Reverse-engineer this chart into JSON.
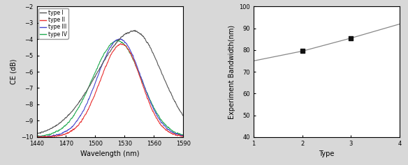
{
  "left_chart": {
    "xlabel": "Wavelength (nm)",
    "ylabel": "CE (dB)",
    "xlim": [
      1440,
      1590
    ],
    "ylim": [
      -10,
      -2
    ],
    "xticks": [
      1440,
      1470,
      1500,
      1530,
      1560,
      1590
    ],
    "yticks": [
      -10,
      -9,
      -8,
      -7,
      -6,
      -5,
      -4,
      -3,
      -2
    ],
    "legend_labels": [
      "type I",
      "type II",
      "type III",
      "type IV"
    ],
    "legend_colors": [
      "#555555",
      "#e83030",
      "#4545cc",
      "#20aa50"
    ],
    "curves": {
      "type_I": {
        "color": "#555555",
        "peak_wl": 1540,
        "peak_ce": -3.5,
        "sigma_l": 38,
        "sigma_r": 28,
        "noise_seed": 1
      },
      "type_II": {
        "color": "#e83030",
        "peak_wl": 1527,
        "peak_ce": -4.3,
        "sigma_l": 22,
        "sigma_r": 20,
        "noise_seed": 2
      },
      "type_III": {
        "color": "#4545cc",
        "peak_wl": 1525,
        "peak_ce": -4.0,
        "sigma_l": 23,
        "sigma_r": 22,
        "noise_seed": 3
      },
      "type_IV": {
        "color": "#20aa50",
        "peak_wl": 1523,
        "peak_ce": -4.1,
        "sigma_l": 26,
        "sigma_r": 24,
        "noise_seed": 4
      }
    }
  },
  "right_chart": {
    "xlabel": "Type",
    "ylabel": "Experiment Bandwidth(nm)",
    "xlim": [
      1,
      4
    ],
    "ylim": [
      40,
      100
    ],
    "xticks": [
      1,
      2,
      3,
      4
    ],
    "yticks": [
      40,
      50,
      60,
      70,
      80,
      90,
      100
    ],
    "line_color": "#888888",
    "marker_color": "#111111",
    "line_x": [
      1,
      2,
      3,
      4
    ],
    "line_y": [
      75.0,
      79.5,
      85.5,
      92.0
    ],
    "points_x": [
      2,
      3
    ],
    "points_y": [
      79.5,
      85.5
    ]
  }
}
